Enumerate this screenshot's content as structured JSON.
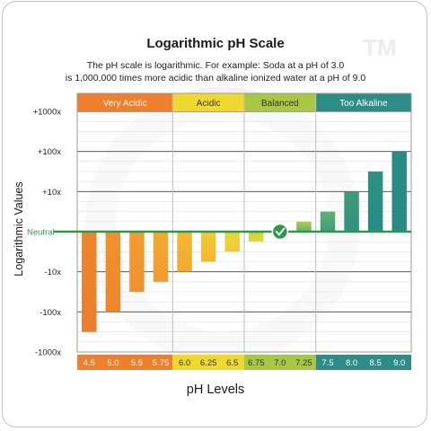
{
  "title": "Logarithmic pH Scale",
  "subtitle_line1": "The pH scale is logarithmic. For example: Soda at a pH of 3.0",
  "subtitle_line2": "is 1,000,000 times more acidic than alkaline ionized water at a pH of 9.0",
  "watermark_tm": "TM",
  "colors": {
    "very_acidic": "#ef7f2a",
    "acidic": "#f0d92f",
    "balanced": "#a8c845",
    "too_alkaline": "#2e8c86",
    "neutral_line": "#2a9a4a"
  },
  "chart_data": {
    "type": "bar",
    "xlabel": "pH Levels",
    "ylabel": "Logarithmic Values",
    "y_tick_labels": [
      "+1000x",
      "+100x",
      "+10x",
      "Neutral",
      "-10x",
      "-100x",
      "-1000x"
    ],
    "y_scale": "log10 relative to neutral",
    "ylim": [
      -3,
      3
    ],
    "grid": true,
    "categories": [
      {
        "name": "Very Acidic",
        "color": "#ef7f2a",
        "span": [
          0,
          3
        ]
      },
      {
        "name": "Acidic",
        "color": "#f0d92f",
        "span": [
          4,
          6
        ]
      },
      {
        "name": "Balanced",
        "color": "#a8c845",
        "span": [
          7,
          9
        ]
      },
      {
        "name": "Too Alkaline",
        "color": "#2e8c86",
        "span": [
          10,
          13
        ]
      }
    ],
    "x": [
      "4.5",
      "5.0",
      "5.5",
      "5.75",
      "6.0",
      "6.25",
      "6.5",
      "6.75",
      "7.0",
      "7.25",
      "7.5",
      "8.0",
      "8.5",
      "9.0"
    ],
    "values": [
      -2.5,
      -2.0,
      -1.5,
      -1.25,
      -1.0,
      -0.75,
      -0.5,
      -0.25,
      0,
      0.25,
      0.5,
      1.0,
      1.5,
      2.0
    ],
    "neutral_marker": "7.0",
    "neutral_marker_icon": "check-icon"
  }
}
